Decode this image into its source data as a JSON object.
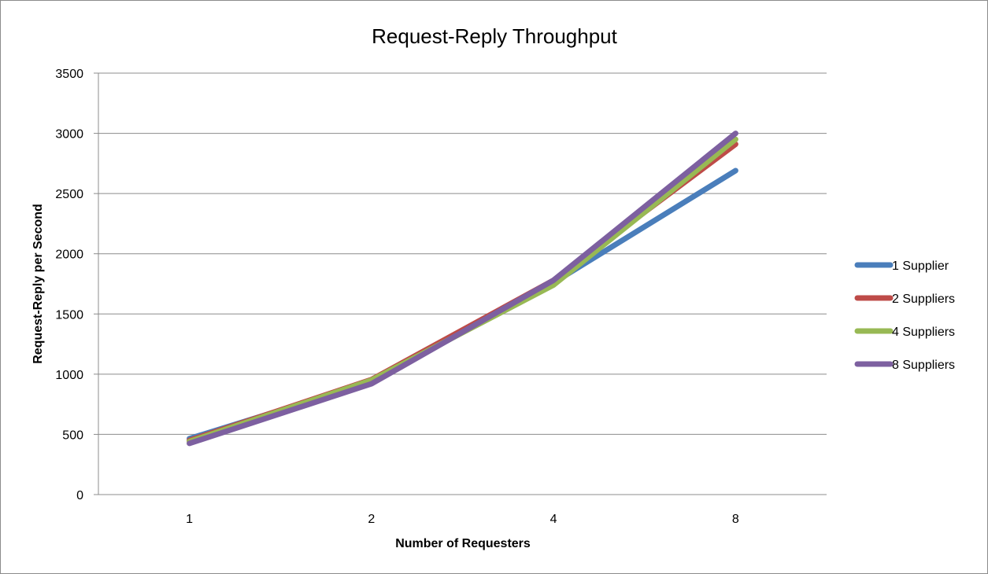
{
  "chart_data": {
    "type": "line",
    "title": "Request-Reply Throughput",
    "xlabel": "Number of Requesters",
    "ylabel": "Request-Reply per Second",
    "categories": [
      "1",
      "2",
      "4",
      "8"
    ],
    "ylim": [
      0,
      3500
    ],
    "yticks": [
      0,
      500,
      1000,
      1500,
      2000,
      2500,
      3000,
      3500
    ],
    "grid": true,
    "legend_position": "right",
    "series": [
      {
        "name": "1 Supplier",
        "color": "#4a7ebb",
        "values": [
          465,
          935,
          1760,
          2690
        ]
      },
      {
        "name": "2 Suppliers",
        "color": "#be4b48",
        "values": [
          450,
          955,
          1780,
          2910
        ]
      },
      {
        "name": "4 Suppliers",
        "color": "#98b954",
        "values": [
          440,
          950,
          1740,
          2950
        ]
      },
      {
        "name": "8 Suppliers",
        "color": "#7d60a0",
        "values": [
          425,
          920,
          1780,
          3000
        ]
      }
    ]
  }
}
